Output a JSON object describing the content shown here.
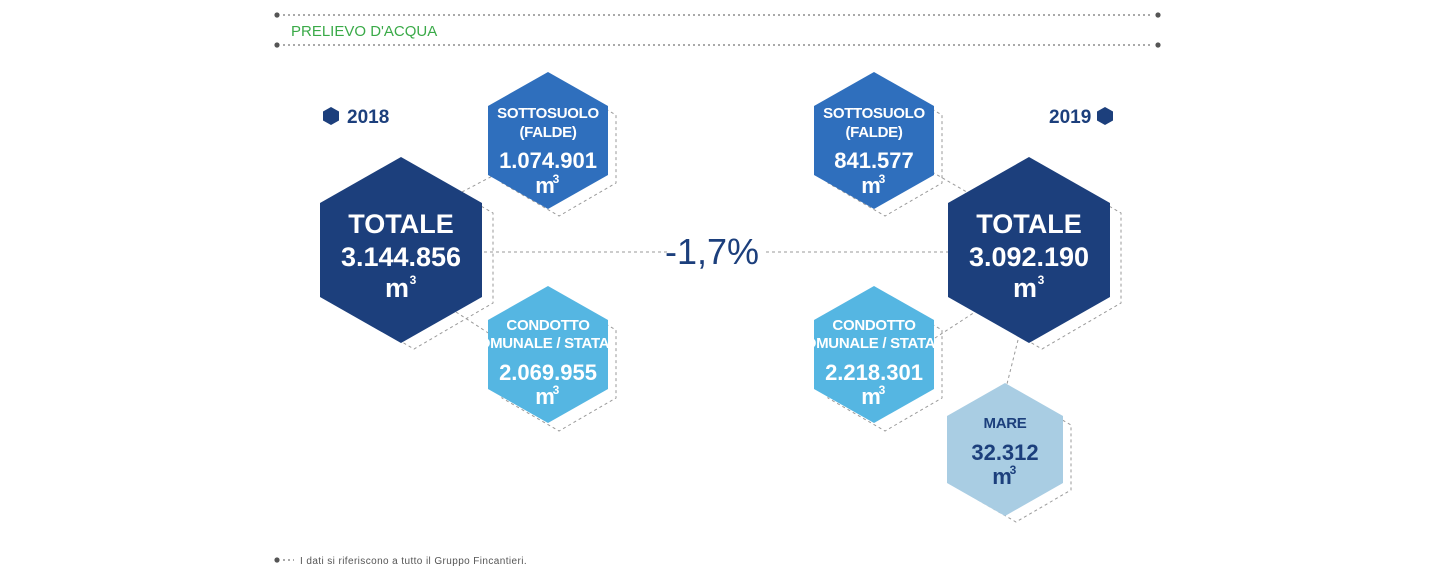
{
  "header": {
    "title": "PRELIEVO D'ACQUA"
  },
  "change": {
    "value": "-1,7%"
  },
  "footer": {
    "note": "I dati si riferiscono a tutto il Gruppo Fincantieri."
  },
  "colors": {
    "navy": "#1c3f7c",
    "blue": "#2f6fbd",
    "sky": "#55b6e2",
    "pale": "#a9cde3",
    "green": "#3aaa48"
  },
  "years": {
    "y2018": {
      "label": "2018",
      "total": {
        "title": "TOTALE",
        "value": "3.144.856",
        "unit": "m",
        "unit_sup": "3"
      },
      "sottosuolo": {
        "line1": "SOTTOSUOLO",
        "line2": "(FALDE)",
        "value": "1.074.901",
        "unit": "m",
        "unit_sup": "3"
      },
      "condotto": {
        "line1": "CONDOTTO",
        "line2": "COMUNALE / STATALE",
        "value": "2.069.955",
        "unit": "m",
        "unit_sup": "3"
      }
    },
    "y2019": {
      "label": "2019",
      "total": {
        "title": "TOTALE",
        "value": "3.092.190",
        "unit": "m",
        "unit_sup": "3"
      },
      "sottosuolo": {
        "line1": "SOTTOSUOLO",
        "line2": "(FALDE)",
        "value": "841.577",
        "unit": "m",
        "unit_sup": "3"
      },
      "condotto": {
        "line1": "CONDOTTO",
        "line2": "COMUNALE / STATALE",
        "value": "2.218.301",
        "unit": "m",
        "unit_sup": "3"
      },
      "mare": {
        "line1": "MARE",
        "value": "32.312",
        "unit": "m",
        "unit_sup": "3"
      }
    }
  }
}
